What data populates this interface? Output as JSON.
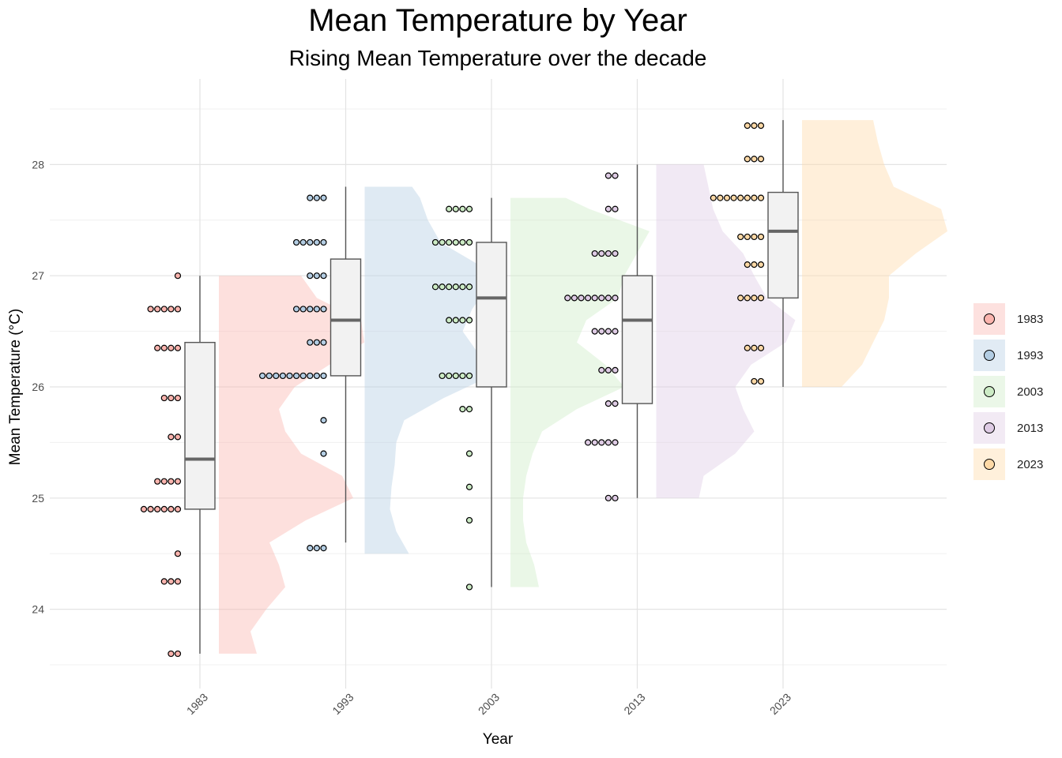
{
  "chart_data": {
    "type": "raincloud",
    "title": "Mean Temperature by Year",
    "subtitle": "Rising Mean Temperature over the decade",
    "xlabel": "Year",
    "ylabel": "Mean Temperature (°C)",
    "categories": [
      "1983",
      "1993",
      "2003",
      "2013",
      "2023"
    ],
    "ylim": [
      23.3,
      28.9
    ],
    "y_ticks": [
      24,
      25,
      26,
      27,
      28
    ],
    "grid": true,
    "legend_position": "right",
    "x_tick_rotation_deg": 45,
    "colors": {
      "1983": "#FBB4AE",
      "1993": "#B3CDE3",
      "2003": "#CCEBC5",
      "2013": "#DECBE4",
      "2023": "#FED9A6"
    },
    "series": [
      {
        "name": "1983",
        "boxplot": {
          "min": 23.6,
          "q1": 24.9,
          "median": 25.35,
          "q3": 26.4,
          "max": 27.0
        },
        "points": [
          {
            "y": 27.0,
            "count": 1
          },
          {
            "y": 26.7,
            "count": 5
          },
          {
            "y": 26.35,
            "count": 4
          },
          {
            "y": 25.9,
            "count": 3
          },
          {
            "y": 25.55,
            "count": 2
          },
          {
            "y": 25.15,
            "count": 4
          },
          {
            "y": 24.9,
            "count": 6
          },
          {
            "y": 24.5,
            "count": 1
          },
          {
            "y": 24.25,
            "count": 3
          },
          {
            "y": 23.6,
            "count": 2
          }
        ],
        "density": [
          [
            23.6,
            0.24
          ],
          [
            23.8,
            0.2
          ],
          [
            24.0,
            0.3
          ],
          [
            24.2,
            0.42
          ],
          [
            24.4,
            0.38
          ],
          [
            24.6,
            0.32
          ],
          [
            24.8,
            0.55
          ],
          [
            25.0,
            0.85
          ],
          [
            25.2,
            0.78
          ],
          [
            25.4,
            0.52
          ],
          [
            25.6,
            0.42
          ],
          [
            25.8,
            0.38
          ],
          [
            26.0,
            0.48
          ],
          [
            26.2,
            0.7
          ],
          [
            26.4,
            0.92
          ],
          [
            26.6,
            0.9
          ],
          [
            26.8,
            0.62
          ],
          [
            27.0,
            0.52
          ]
        ]
      },
      {
        "name": "1993",
        "boxplot": {
          "min": 24.6,
          "q1": 26.1,
          "median": 26.6,
          "q3": 27.15,
          "max": 27.8
        },
        "points": [
          {
            "y": 27.7,
            "count": 3
          },
          {
            "y": 27.3,
            "count": 5
          },
          {
            "y": 27.0,
            "count": 3
          },
          {
            "y": 26.7,
            "count": 5
          },
          {
            "y": 26.4,
            "count": 3
          },
          {
            "y": 26.1,
            "count": 10
          },
          {
            "y": 25.7,
            "count": 1
          },
          {
            "y": 25.4,
            "count": 1
          },
          {
            "y": 24.55,
            "count": 3
          }
        ],
        "density": [
          [
            24.5,
            0.28
          ],
          [
            24.7,
            0.2
          ],
          [
            24.9,
            0.16
          ],
          [
            25.1,
            0.17
          ],
          [
            25.3,
            0.19
          ],
          [
            25.5,
            0.2
          ],
          [
            25.7,
            0.25
          ],
          [
            25.9,
            0.5
          ],
          [
            26.1,
            0.8
          ],
          [
            26.3,
            0.72
          ],
          [
            26.5,
            0.62
          ],
          [
            26.7,
            0.68
          ],
          [
            26.9,
            0.78
          ],
          [
            27.1,
            0.72
          ],
          [
            27.3,
            0.48
          ],
          [
            27.5,
            0.4
          ],
          [
            27.7,
            0.35
          ],
          [
            27.8,
            0.3
          ]
        ]
      },
      {
        "name": "2003",
        "boxplot": {
          "min": 24.2,
          "q1": 26.0,
          "median": 26.8,
          "q3": 27.3,
          "max": 27.7
        },
        "points": [
          {
            "y": 27.6,
            "count": 4
          },
          {
            "y": 27.3,
            "count": 6
          },
          {
            "y": 26.9,
            "count": 6
          },
          {
            "y": 26.6,
            "count": 4
          },
          {
            "y": 26.1,
            "count": 5
          },
          {
            "y": 25.8,
            "count": 2
          },
          {
            "y": 25.4,
            "count": 1
          },
          {
            "y": 25.1,
            "count": 1
          },
          {
            "y": 24.8,
            "count": 1
          },
          {
            "y": 24.2,
            "count": 1
          }
        ],
        "density": [
          [
            24.2,
            0.18
          ],
          [
            24.4,
            0.15
          ],
          [
            24.6,
            0.1
          ],
          [
            24.8,
            0.08
          ],
          [
            25.0,
            0.08
          ],
          [
            25.2,
            0.1
          ],
          [
            25.4,
            0.14
          ],
          [
            25.6,
            0.2
          ],
          [
            25.8,
            0.42
          ],
          [
            26.0,
            0.72
          ],
          [
            26.2,
            0.6
          ],
          [
            26.4,
            0.42
          ],
          [
            26.6,
            0.48
          ],
          [
            26.8,
            0.68
          ],
          [
            27.0,
            0.72
          ],
          [
            27.2,
            0.8
          ],
          [
            27.4,
            0.88
          ],
          [
            27.6,
            0.5
          ],
          [
            27.7,
            0.35
          ]
        ]
      },
      {
        "name": "2013",
        "boxplot": {
          "min": 25.0,
          "q1": 25.85,
          "median": 26.6,
          "q3": 27.0,
          "max": 28.0
        },
        "points": [
          {
            "y": 27.9,
            "count": 2
          },
          {
            "y": 27.6,
            "count": 2
          },
          {
            "y": 27.2,
            "count": 4
          },
          {
            "y": 26.8,
            "count": 8
          },
          {
            "y": 26.5,
            "count": 4
          },
          {
            "y": 26.15,
            "count": 3
          },
          {
            "y": 25.85,
            "count": 2
          },
          {
            "y": 25.5,
            "count": 5
          },
          {
            "y": 25.0,
            "count": 2
          }
        ],
        "density": [
          [
            25.0,
            0.27
          ],
          [
            25.2,
            0.3
          ],
          [
            25.4,
            0.5
          ],
          [
            25.6,
            0.62
          ],
          [
            25.8,
            0.55
          ],
          [
            26.0,
            0.5
          ],
          [
            26.2,
            0.6
          ],
          [
            26.4,
            0.82
          ],
          [
            26.6,
            0.88
          ],
          [
            26.8,
            0.7
          ],
          [
            27.0,
            0.62
          ],
          [
            27.2,
            0.55
          ],
          [
            27.4,
            0.42
          ],
          [
            27.6,
            0.36
          ],
          [
            27.8,
            0.33
          ],
          [
            28.0,
            0.3
          ]
        ]
      },
      {
        "name": "2023",
        "boxplot": {
          "min": 26.0,
          "q1": 26.8,
          "median": 27.4,
          "q3": 27.75,
          "max": 28.4
        },
        "points": [
          {
            "y": 28.35,
            "count": 3
          },
          {
            "y": 28.05,
            "count": 3
          },
          {
            "y": 27.7,
            "count": 8
          },
          {
            "y": 27.35,
            "count": 4
          },
          {
            "y": 27.1,
            "count": 3
          },
          {
            "y": 26.8,
            "count": 4
          },
          {
            "y": 26.35,
            "count": 3
          },
          {
            "y": 26.05,
            "count": 2
          }
        ],
        "density": [
          [
            26.0,
            0.25
          ],
          [
            26.2,
            0.38
          ],
          [
            26.4,
            0.45
          ],
          [
            26.6,
            0.52
          ],
          [
            26.8,
            0.55
          ],
          [
            27.0,
            0.55
          ],
          [
            27.2,
            0.72
          ],
          [
            27.4,
            0.92
          ],
          [
            27.6,
            0.88
          ],
          [
            27.8,
            0.58
          ],
          [
            28.0,
            0.52
          ],
          [
            28.2,
            0.48
          ],
          [
            28.4,
            0.45
          ]
        ]
      }
    ]
  }
}
